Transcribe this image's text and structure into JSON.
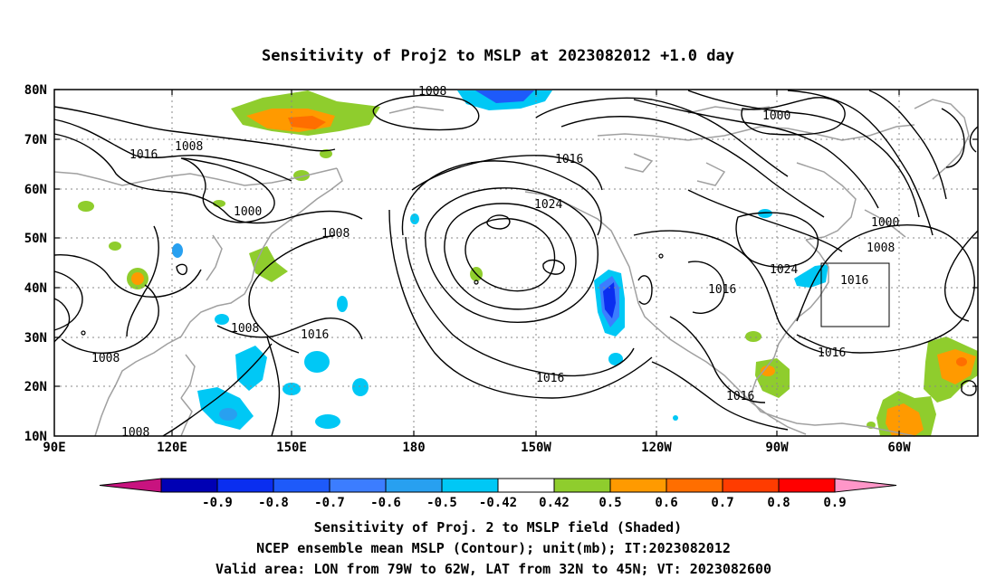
{
  "title": "Sensitivity of Proj2 to MSLP at 2023082012 +1.0 day",
  "x_tick_labels": [
    "90E",
    "120E",
    "150E",
    "180",
    "150W",
    "120W",
    "90W",
    "60W"
  ],
  "y_tick_labels": [
    "80N",
    "70N",
    "60N",
    "50N",
    "40N",
    "30N",
    "20N",
    "10N"
  ],
  "contour_labels": [
    "1008",
    "1016",
    "1008",
    "1000",
    "1008",
    "1024",
    "1016",
    "1000",
    "1000",
    "1008",
    "1024",
    "1016",
    "1016",
    "1016",
    "1008",
    "1016",
    "1016",
    "1016",
    "1008",
    "1008"
  ],
  "colorbar": {
    "tick_labels": [
      "-0.9",
      "-0.8",
      "-0.7",
      "-0.6",
      "-0.5",
      "-0.42",
      "0.42",
      "0.5",
      "0.6",
      "0.7",
      "0.8",
      "0.9"
    ],
    "colors": [
      "#c8137f",
      "#0000b4",
      "#0a2ef0",
      "#1e5afa",
      "#3c7dff",
      "#28a0f0",
      "#00c8f5",
      "#ffffff",
      "#8fcd2d",
      "#ff9a00",
      "#ff6e00",
      "#ff3c00",
      "#ff0000",
      "#ff96c8"
    ]
  },
  "caption": {
    "line1": "Sensitivity of Proj. 2 to MSLP field (Shaded)",
    "line2": "NCEP ensemble mean MSLP (Contour); unit(mb); IT:2023082012",
    "line3": "Valid area: LON from 79W to 62W, LAT from 32N to 45N; VT: 2023082600"
  }
}
